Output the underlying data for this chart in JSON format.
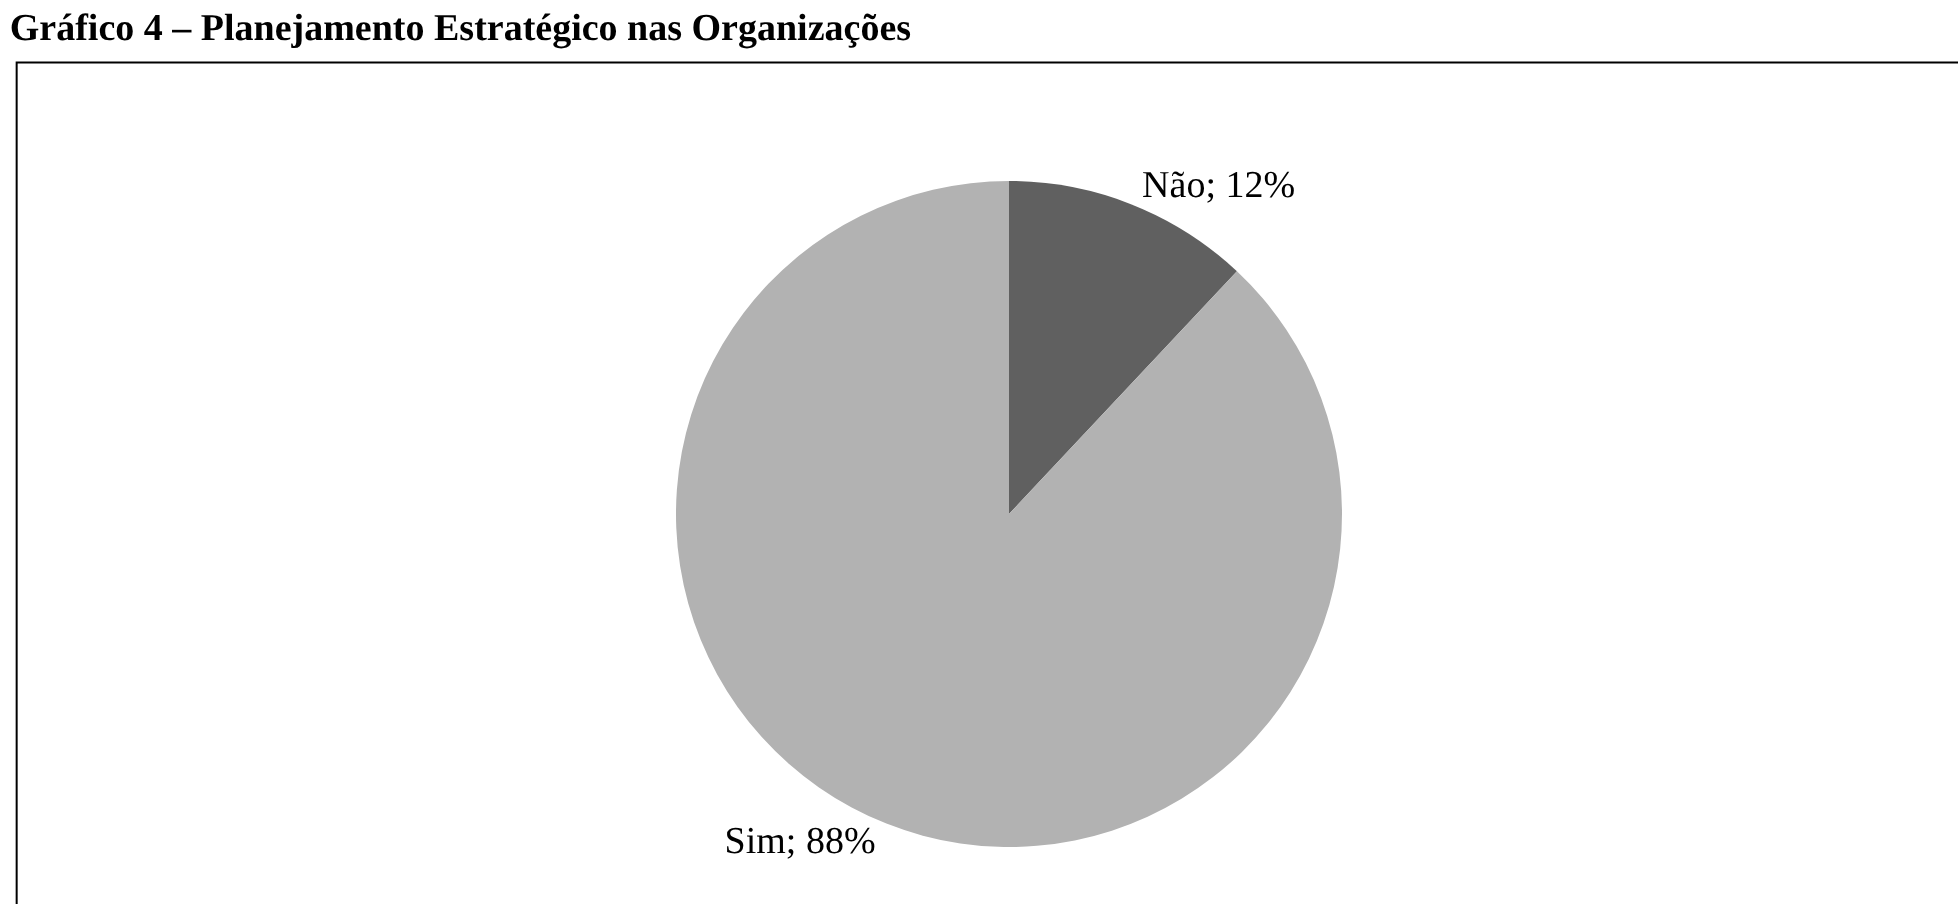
{
  "chart_data": {
    "type": "pie",
    "title": "Gráfico 4 – Planejamento Estratégico nas Organizações",
    "categories": [
      "Não",
      "Sim"
    ],
    "values": [
      12,
      88
    ],
    "colors": [
      "#606060",
      "#b2b2b2"
    ],
    "value_labels": [
      "12%",
      "88%"
    ],
    "legend": false
  }
}
